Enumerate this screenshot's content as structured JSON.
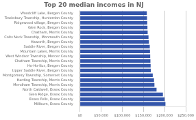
{
  "chart_data": {
    "type": "bar",
    "orientation": "horizontal",
    "title": "Top 20 median incomes in NJ",
    "categories": [
      "Woodcliff Lake, Bergen County",
      "Tewksbury Township, Hunterdon County",
      "Ridgewood village, Bergen County",
      "Glen Rock, Bergen County",
      "Chatham, Morris County",
      "Colts Neck Township, Monmouth County",
      "Haworth, Bergen County",
      "Saddle River, Bergen County",
      "Mountain Lakes, Morris County",
      "West Windsor Township, Mercer County",
      "Chatham Township, Morris County",
      "Ho-Ho-Kus, Bergen County",
      "Upper Saddle River, Bergen County",
      "Montgomery Township, Somerset County",
      "Harding Township, Morris County",
      "Mendham Township, Morris County",
      "North Caldwell, Essex County",
      "Glen Ridge, Essex County",
      "Essex Fells, Essex County",
      "Millburn, Essex County"
    ],
    "values": [
      158000,
      158500,
      159000,
      159500,
      160000,
      162000,
      163000,
      165000,
      165500,
      166000,
      166500,
      167000,
      167500,
      172000,
      175000,
      176000,
      181000,
      196000,
      200000,
      202000
    ],
    "color": "#3355aa",
    "xlim": [
      0,
      250000
    ],
    "xticks": [
      {
        "value": 0,
        "label": "$0"
      },
      {
        "value": 50000,
        "label": "$50,000"
      },
      {
        "value": 100000,
        "label": "$100,000"
      },
      {
        "value": 150000,
        "label": "$150,000"
      },
      {
        "value": 200000,
        "label": "$200,000"
      },
      {
        "value": 250000,
        "label": "$250,000"
      }
    ],
    "grid": true
  }
}
